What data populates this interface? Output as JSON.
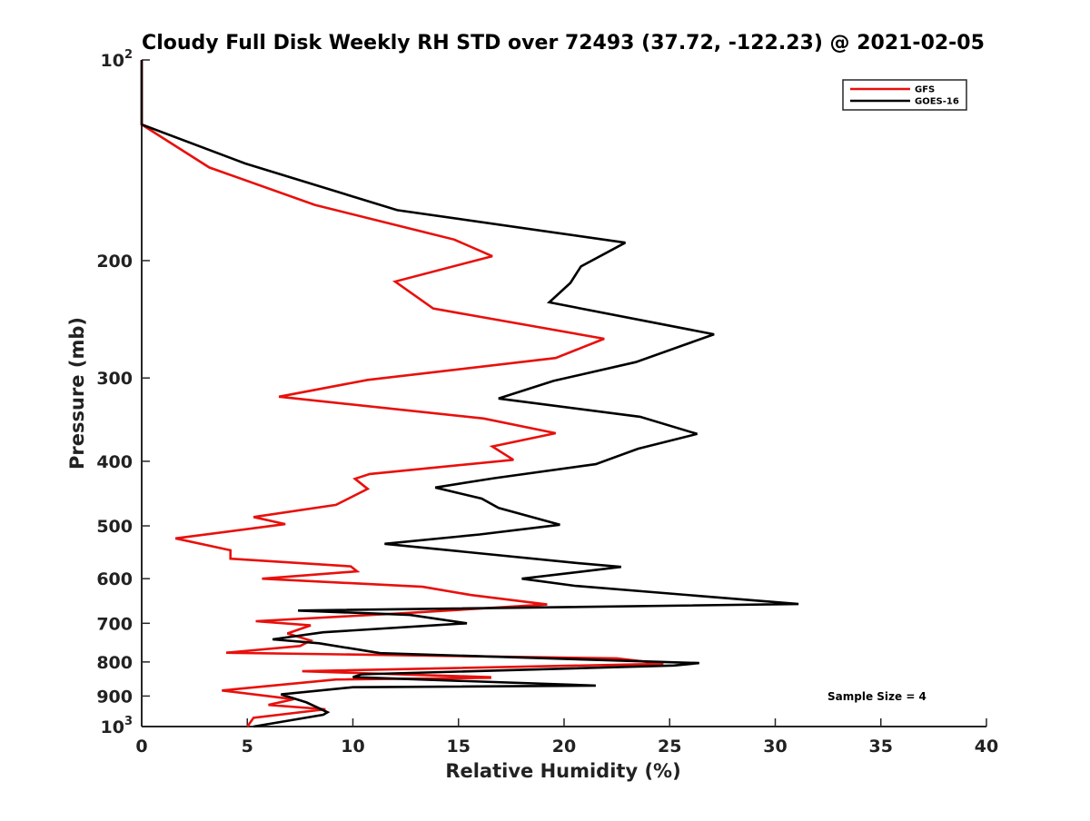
{
  "chart_data": {
    "type": "line",
    "title": "Cloudy Full Disk Weekly RH STD over 72493 (37.72, -122.23) @ 2021-02-05",
    "xlabel": "Relative Humidity (%)",
    "ylabel": "Pressure (mb)",
    "xlim": [
      0,
      40
    ],
    "ylim": [
      100,
      1000
    ],
    "y_scale": "log",
    "y_reversed": true,
    "grid": false,
    "legend_position": "top-right",
    "x_ticks": [
      {
        "value": 0,
        "label": "0"
      },
      {
        "value": 5,
        "label": "5"
      },
      {
        "value": 10,
        "label": "10"
      },
      {
        "value": 15,
        "label": "15"
      },
      {
        "value": 20,
        "label": "20"
      },
      {
        "value": 25,
        "label": "25"
      },
      {
        "value": 30,
        "label": "30"
      },
      {
        "value": 35,
        "label": "35"
      },
      {
        "value": 40,
        "label": "40"
      }
    ],
    "y_ticks": [
      {
        "value": 100,
        "base": "10",
        "exp": "2"
      },
      {
        "value": 200,
        "label": "200"
      },
      {
        "value": 300,
        "label": "300"
      },
      {
        "value": 400,
        "label": "400"
      },
      {
        "value": 500,
        "label": "500"
      },
      {
        "value": 600,
        "label": "600"
      },
      {
        "value": 700,
        "label": "700"
      },
      {
        "value": 800,
        "label": "800"
      },
      {
        "value": 900,
        "label": "900"
      },
      {
        "value": 1000,
        "base": "10",
        "exp": "3"
      }
    ],
    "annotation": "Sample Size = 4",
    "series": [
      {
        "name": "GFS",
        "color": "#e8100c",
        "points": [
          [
            0,
            100
          ],
          [
            0,
            125
          ],
          [
            3.2,
            145
          ],
          [
            8.2,
            165
          ],
          [
            14.8,
            186
          ],
          [
            16.6,
            197
          ],
          [
            12.0,
            215
          ],
          [
            13.8,
            236
          ],
          [
            21.9,
            262
          ],
          [
            19.6,
            280
          ],
          [
            10.7,
            302
          ],
          [
            6.5,
            320
          ],
          [
            16.2,
            345
          ],
          [
            19.6,
            363
          ],
          [
            16.6,
            380
          ],
          [
            17.6,
            398
          ],
          [
            10.8,
            418
          ],
          [
            10.1,
            425
          ],
          [
            10.7,
            440
          ],
          [
            9.2,
            465
          ],
          [
            5.3,
            485
          ],
          [
            6.8,
            497
          ],
          [
            1.6,
            522
          ],
          [
            4.2,
            544
          ],
          [
            4.2,
            560
          ],
          [
            9.9,
            575
          ],
          [
            10.2,
            585
          ],
          [
            5.7,
            600
          ],
          [
            13.3,
            617
          ],
          [
            15.6,
            635
          ],
          [
            19.2,
            656
          ],
          [
            12.4,
            676
          ],
          [
            5.4,
            695
          ],
          [
            8.0,
            705
          ],
          [
            6.9,
            725
          ],
          [
            8.0,
            743
          ],
          [
            7.5,
            757
          ],
          [
            4.0,
            775
          ],
          [
            22.5,
            790
          ],
          [
            24.7,
            805
          ],
          [
            7.6,
            826
          ],
          [
            16.5,
            843
          ],
          [
            16.5,
            845
          ],
          [
            9.2,
            850
          ],
          [
            3.8,
            883
          ],
          [
            7.2,
            910
          ],
          [
            6.0,
            928
          ],
          [
            8.7,
            942
          ],
          [
            5.3,
            970
          ],
          [
            5.0,
            1000
          ]
        ]
      },
      {
        "name": "GOES-16",
        "color": "#000000",
        "points": [
          [
            0,
            100
          ],
          [
            0,
            125
          ],
          [
            4.9,
            143
          ],
          [
            12.1,
            168
          ],
          [
            22.9,
            188
          ],
          [
            20.8,
            204
          ],
          [
            20.3,
            216
          ],
          [
            19.3,
            231
          ],
          [
            27.1,
            258
          ],
          [
            23.4,
            284
          ],
          [
            19.5,
            303
          ],
          [
            16.9,
            322
          ],
          [
            23.6,
            343
          ],
          [
            26.3,
            364
          ],
          [
            23.5,
            383
          ],
          [
            21.5,
            404
          ],
          [
            16.7,
            424
          ],
          [
            13.9,
            438
          ],
          [
            16.1,
            455
          ],
          [
            16.9,
            470
          ],
          [
            19.8,
            498
          ],
          [
            16.0,
            515
          ],
          [
            11.5,
            532
          ],
          [
            20.5,
            568
          ],
          [
            22.7,
            576
          ],
          [
            18.0,
            600
          ],
          [
            20.5,
            615
          ],
          [
            31.1,
            655
          ],
          [
            7.4,
            670
          ],
          [
            12.7,
            680
          ],
          [
            15.4,
            700
          ],
          [
            8.6,
            722
          ],
          [
            6.2,
            740
          ],
          [
            8.4,
            750
          ],
          [
            11.3,
            776
          ],
          [
            26.4,
            803
          ],
          [
            25.2,
            810
          ],
          [
            10.4,
            835
          ],
          [
            10.0,
            843
          ],
          [
            21.5,
            868
          ],
          [
            10.0,
            873
          ],
          [
            6.6,
            895
          ],
          [
            7.8,
            920
          ],
          [
            8.8,
            952
          ],
          [
            8.6,
            960
          ],
          [
            5.3,
            1000
          ]
        ]
      }
    ]
  }
}
